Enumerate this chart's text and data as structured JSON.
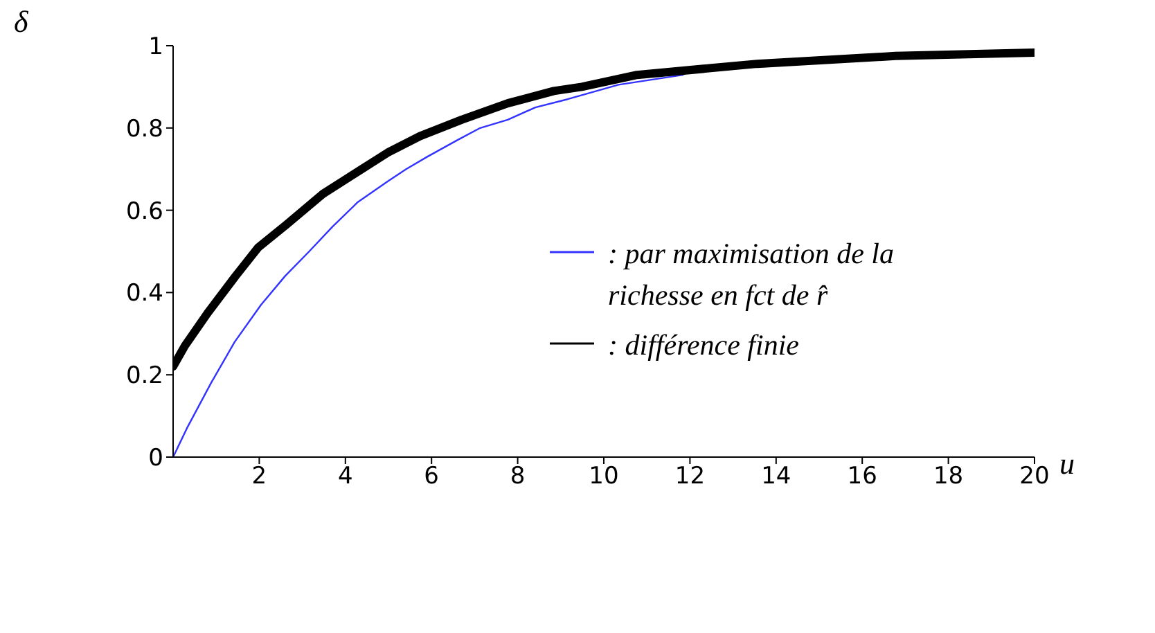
{
  "chart_data": {
    "type": "line",
    "xlabel": "u",
    "ylabel": "δ",
    "xlim": [
      0,
      20
    ],
    "xticks": [
      2,
      4,
      6,
      8,
      10,
      12,
      14,
      16,
      18,
      20
    ],
    "ylim": [
      0,
      1
    ],
    "yticks": [
      0,
      0.2,
      0.4,
      0.6,
      0.8,
      1
    ],
    "grid": false,
    "legend": "right",
    "marker": "none",
    "line_style": "solid",
    "series": [
      {
        "name": ": par maximisation de la richesse en fct de r̂",
        "color": "#3333ff",
        "x": [
          0,
          0.32,
          0.88,
          1.43,
          2.04,
          2.6,
          3.16,
          3.7,
          4.29,
          4.98,
          5.41,
          5.9,
          6.59,
          7.13,
          7.77,
          8.41,
          9.16,
          9.49,
          10.34,
          11.84
        ],
        "values": [
          0,
          0.07,
          0.18,
          0.28,
          0.37,
          0.44,
          0.5,
          0.56,
          0.62,
          0.67,
          0.7,
          0.73,
          0.77,
          0.8,
          0.82,
          0.85,
          0.87,
          0.88,
          0.905,
          0.929
        ]
      },
      {
        "name": ": différence finie",
        "color": "#000000",
        "x": [
          0,
          0.27,
          0.8,
          1.45,
          1.98,
          2.63,
          3.48,
          4.23,
          4.98,
          5.73,
          6.7,
          7.77,
          8.84,
          9.49,
          10.77,
          13.56,
          16.77,
          20
        ],
        "values": [
          0.22,
          0.27,
          0.35,
          0.44,
          0.51,
          0.565,
          0.64,
          0.69,
          0.74,
          0.78,
          0.82,
          0.86,
          0.89,
          0.9,
          0.929,
          0.956,
          0.975,
          0.983
        ]
      }
    ]
  }
}
